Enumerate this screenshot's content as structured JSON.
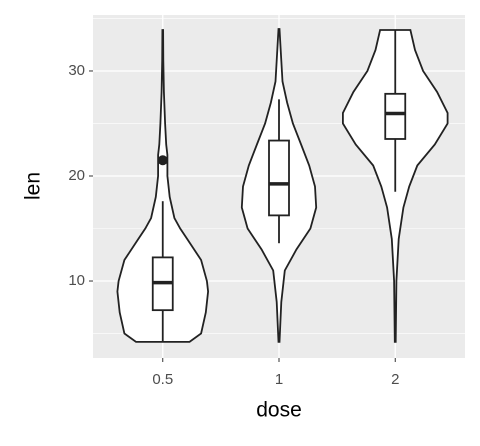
{
  "chart_data": {
    "type": "violin",
    "x_label": "dose",
    "y_label": "len",
    "categories": [
      "0.5",
      "1",
      "2"
    ],
    "ylim": [
      2.67,
      35.33
    ],
    "yticks": [
      10,
      20,
      30
    ],
    "minor_yticks": [
      5,
      15,
      25,
      35
    ],
    "grid": true,
    "groups": [
      {
        "violin": {
          "y": [
            4.2,
            5,
            7,
            9,
            10,
            12,
            14,
            15,
            16,
            18,
            20,
            22,
            23,
            25,
            28,
            31,
            33.9
          ],
          "width": [
            0.23,
            0.33,
            0.37,
            0.39,
            0.38,
            0.33,
            0.21,
            0.15,
            0.1,
            0.06,
            0.04,
            0.04,
            0.03,
            0.02,
            0.01,
            0.005,
            0.003
          ]
        },
        "box": {
          "min": 4.2,
          "q1": 7.225,
          "median": 9.85,
          "q3": 12.25,
          "max": 17.6
        },
        "outliers": [
          21.5
        ]
      },
      {
        "violin": {
          "y": [
            4.2,
            8,
            11,
            13,
            15,
            17,
            19,
            21,
            23,
            25,
            27,
            29,
            31,
            34
          ],
          "width": [
            0.004,
            0.02,
            0.05,
            0.15,
            0.27,
            0.32,
            0.31,
            0.26,
            0.19,
            0.12,
            0.07,
            0.03,
            0.02,
            0.004
          ]
        },
        "box": {
          "min": 13.6,
          "q1": 16.25,
          "median": 19.25,
          "q3": 23.375,
          "max": 27.3
        },
        "outliers": []
      },
      {
        "violin": {
          "y": [
            4.2,
            10,
            14,
            17,
            19,
            21,
            23,
            25,
            26,
            28,
            30,
            32,
            33.9
          ],
          "width": [
            0.004,
            0.01,
            0.03,
            0.07,
            0.12,
            0.19,
            0.34,
            0.45,
            0.45,
            0.36,
            0.24,
            0.17,
            0.13
          ]
        },
        "box": {
          "min": 18.5,
          "q1": 23.525,
          "median": 25.95,
          "q3": 27.825,
          "max": 33.9
        },
        "outliers": []
      }
    ]
  }
}
